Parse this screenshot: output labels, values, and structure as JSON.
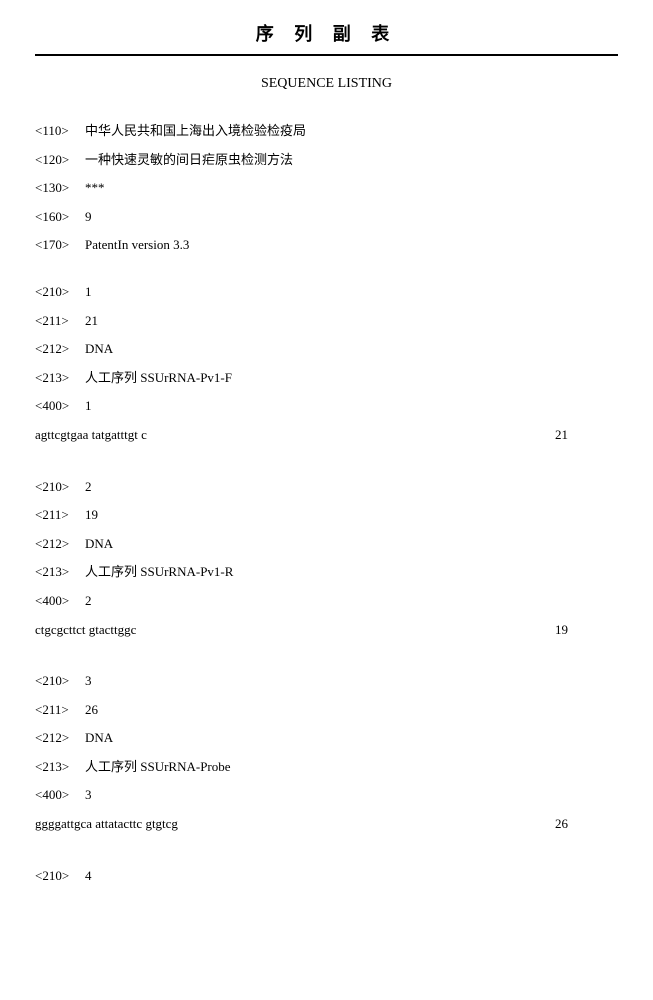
{
  "page": {
    "header_title": "序 列 副 表",
    "sub_title": "SEQUENCE LISTING"
  },
  "meta": {
    "f110": {
      "tag": "<110>",
      "value": "中华人民共和国上海出入境检验检疫局"
    },
    "f120": {
      "tag": "<120>",
      "value": "一种快速灵敏的间日疟原虫检测方法"
    },
    "f130": {
      "tag": "<130>",
      "value": "***"
    },
    "f160": {
      "tag": "<160>",
      "value": "9"
    },
    "f170": {
      "tag": "<170>",
      "value": "PatentIn version 3.3"
    }
  },
  "seq1": {
    "f210": {
      "tag": "<210>",
      "value": "1"
    },
    "f211": {
      "tag": "<211>",
      "value": "21"
    },
    "f212": {
      "tag": "<212>",
      "value": "DNA"
    },
    "f213": {
      "tag": "<213>",
      "value": "人工序列 SSUrRNA-Pv1-F"
    },
    "f400": {
      "tag": "<400>",
      "value": "1"
    },
    "sequence": "agttcgtgaa tatgatttgt c",
    "length": "21"
  },
  "seq2": {
    "f210": {
      "tag": "<210>",
      "value": "2"
    },
    "f211": {
      "tag": "<211>",
      "value": "19"
    },
    "f212": {
      "tag": "<212>",
      "value": "DNA"
    },
    "f213": {
      "tag": "<213>",
      "value": "人工序列 SSUrRNA-Pv1-R"
    },
    "f400": {
      "tag": "<400>",
      "value": "2"
    },
    "sequence": "ctgcgcttct gtacttggc",
    "length": "19"
  },
  "seq3": {
    "f210": {
      "tag": "<210>",
      "value": "3"
    },
    "f211": {
      "tag": "<211>",
      "value": "26"
    },
    "f212": {
      "tag": "<212>",
      "value": "DNA"
    },
    "f213": {
      "tag": "<213>",
      "value": "人工序列 SSUrRNA-Probe"
    },
    "f400": {
      "tag": "<400>",
      "value": "3"
    },
    "sequence": "ggggattgca attatacttc gtgtcg",
    "length": "26"
  },
  "seq4": {
    "f210": {
      "tag": "<210>",
      "value": "4"
    }
  }
}
